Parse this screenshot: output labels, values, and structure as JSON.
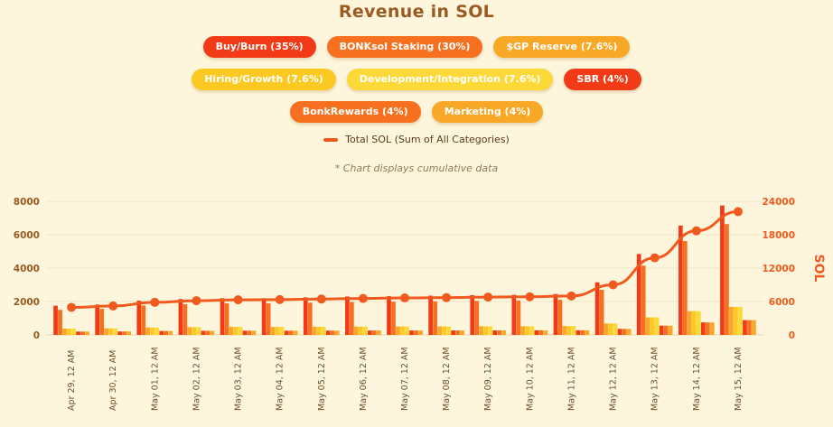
{
  "title": "Revenue in SOL",
  "legend": [
    [
      {
        "label": "Buy/Burn (35%)",
        "bg": "#f23a16",
        "fg": "#ffffff"
      },
      {
        "label": "BONKsol Staking (30%)",
        "bg": "#f6701f",
        "fg": "#ffffff"
      },
      {
        "label": "$GP Reserve (7.6%)",
        "bg": "#f8a727",
        "fg": "#ffffff"
      }
    ],
    [
      {
        "label": "Hiring/Growth (7.6%)",
        "bg": "#fcc923",
        "fg": "#ffffff"
      },
      {
        "label": "Development/Integration (7.6%)",
        "bg": "#fcd939",
        "fg": "#ffffff"
      },
      {
        "label": "SBR (4%)",
        "bg": "#f23a16",
        "fg": "#ffffff"
      }
    ],
    [
      {
        "label": "BonkRewards (4%)",
        "bg": "#f6701f",
        "fg": "#ffffff"
      },
      {
        "label": "Marketing (4%)",
        "bg": "#f8a727",
        "fg": "#ffffff"
      }
    ]
  ],
  "total_legend": {
    "label": "Total SOL (Sum of All Categories)",
    "color": "#f05a1e"
  },
  "note": "* Chart displays cumulative data",
  "chart_data": {
    "type": "bar",
    "title": "Revenue in SOL",
    "categories": [
      "Apr 29, 12 AM",
      "Apr 30, 12 AM",
      "May 01, 12 AM",
      "May 02, 12 AM",
      "May 03, 12 AM",
      "May 04, 12 AM",
      "May 05, 12 AM",
      "May 06, 12 AM",
      "May 07, 12 AM",
      "May 08, 12 AM",
      "May 09, 12 AM",
      "May 10, 12 AM",
      "May 11, 12 AM",
      "May 12, 12 AM",
      "May 13, 12 AM",
      "May 14, 12 AM",
      "May 15, 12 AM"
    ],
    "ylim_left": [
      0,
      8000
    ],
    "yticks_left": [
      "0",
      "2000",
      "4000",
      "6000",
      "8000"
    ],
    "ylim_right": [
      0,
      24000
    ],
    "yticks_right": [
      "0",
      "6000",
      "12000",
      "18000",
      "24000"
    ],
    "ylabel_right": "SOL",
    "axis_colors": {
      "left": "#9a5a22",
      "right": "#f05a1e"
    },
    "series": [
      {
        "name": "Buy/Burn (35%)",
        "color": "#f23a16",
        "values": [
          1750,
          1820,
          2050,
          2150,
          2200,
          2200,
          2250,
          2300,
          2320,
          2350,
          2380,
          2400,
          2450,
          3150,
          4850,
          6550,
          7750
        ]
      },
      {
        "name": "BONKsol Staking (30%)",
        "color": "#f6701f",
        "values": [
          1500,
          1560,
          1760,
          1840,
          1890,
          1890,
          1930,
          1970,
          1990,
          2010,
          2040,
          2060,
          2100,
          2700,
          4150,
          5620,
          6640
        ]
      },
      {
        "name": "$GP Reserve (7.6%)",
        "color": "#f8a727",
        "values": [
          380,
          395,
          445,
          465,
          480,
          480,
          490,
          500,
          505,
          510,
          517,
          522,
          532,
          684,
          1052,
          1423,
          1682
        ]
      },
      {
        "name": "Hiring/Growth (7.6%)",
        "color": "#fcc923",
        "values": [
          380,
          395,
          445,
          465,
          480,
          480,
          490,
          500,
          505,
          510,
          517,
          522,
          532,
          684,
          1052,
          1423,
          1682
        ]
      },
      {
        "name": "Development/Integration (7.6%)",
        "color": "#fcd939",
        "values": [
          380,
          395,
          445,
          465,
          480,
          480,
          490,
          500,
          505,
          510,
          517,
          522,
          532,
          684,
          1052,
          1423,
          1682
        ]
      },
      {
        "name": "SBR (4%)",
        "color": "#f23a16",
        "values": [
          200,
          208,
          234,
          245,
          252,
          252,
          257,
          262,
          265,
          268,
          272,
          275,
          280,
          360,
          554,
          749,
          886
        ]
      },
      {
        "name": "BonkRewards (4%)",
        "color": "#f6701f",
        "values": [
          200,
          208,
          234,
          245,
          252,
          252,
          257,
          262,
          265,
          268,
          272,
          275,
          280,
          360,
          554,
          749,
          886
        ]
      },
      {
        "name": "Marketing (4%)",
        "color": "#f8a727",
        "values": [
          200,
          208,
          234,
          245,
          252,
          252,
          257,
          262,
          265,
          268,
          272,
          275,
          280,
          360,
          554,
          749,
          886
        ]
      },
      {
        "name": "Total SOL (Sum of All Categories)",
        "type": "line",
        "axis": "right",
        "color": "#f05a1e",
        "values": [
          4950,
          5200,
          5850,
          6150,
          6300,
          6350,
          6450,
          6550,
          6650,
          6700,
          6800,
          6850,
          7000,
          9000,
          13850,
          18700,
          22150
        ]
      }
    ]
  }
}
